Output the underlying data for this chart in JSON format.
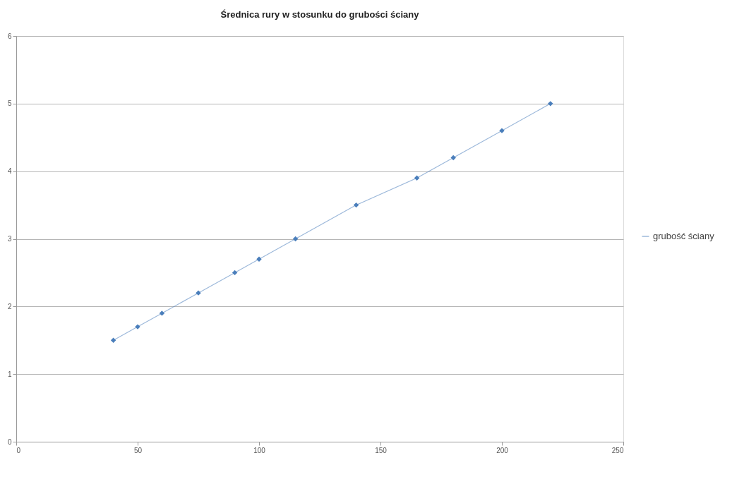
{
  "chart_data": {
    "type": "line",
    "title": "Średnica rury w stosunku do grubości ściany",
    "x": [
      40,
      50,
      60,
      75,
      90,
      100,
      115,
      140,
      165,
      180,
      200,
      220
    ],
    "series": [
      {
        "name": "grubość ściany",
        "color": "#4a7ebb",
        "values": [
          1.5,
          1.7,
          1.9,
          2.2,
          2.5,
          2.7,
          3.0,
          3.5,
          3.9,
          4.2,
          4.6,
          5.0
        ]
      }
    ],
    "xlim": [
      0,
      250
    ],
    "xticks": [
      0,
      50,
      100,
      150,
      200,
      250
    ],
    "ylim": [
      0,
      6
    ],
    "yticks": [
      0,
      1,
      2,
      3,
      4,
      5,
      6
    ],
    "grid": "y",
    "legend": "right",
    "marker": "diamond",
    "line_style": "solid"
  }
}
